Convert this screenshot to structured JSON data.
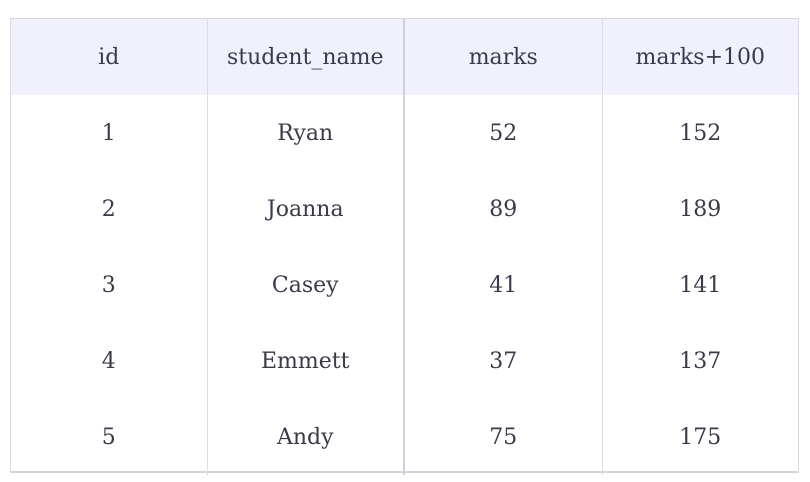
{
  "table": {
    "headers": [
      "id",
      "student_name",
      "marks",
      "marks+100"
    ],
    "rows": [
      [
        "1",
        "Ryan",
        "52",
        "152"
      ],
      [
        "2",
        "Joanna",
        "89",
        "189"
      ],
      [
        "3",
        "Casey",
        "41",
        "141"
      ],
      [
        "4",
        "Emmett",
        "37",
        "137"
      ],
      [
        "5",
        "Andy",
        "75",
        "175"
      ]
    ]
  },
  "colors": {
    "header_background": "#f1f1fe",
    "text": "#3a3a4a",
    "border": "#d9d9e0"
  }
}
